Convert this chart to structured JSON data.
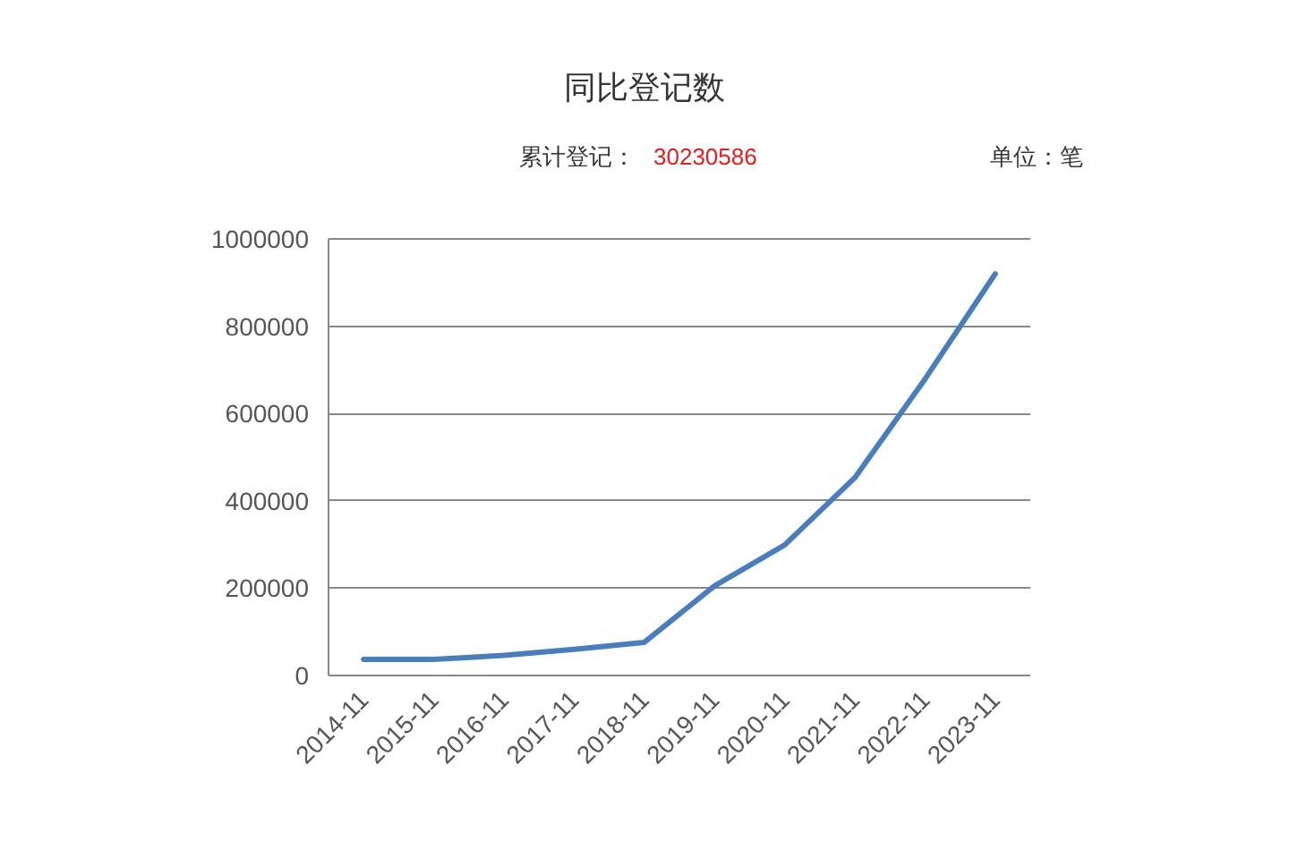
{
  "chart_data": {
    "type": "line",
    "title": "同比登记数",
    "subtitle": "累计登记：",
    "annotations": [
      "30230586",
      "单位：笔"
    ],
    "categories": [
      "2014-11",
      "2015-11",
      "2016-11",
      "2017-11",
      "2018-11",
      "2019-11",
      "2020-11",
      "2021-11",
      "2022-11",
      "2023-11"
    ],
    "series": [
      {
        "color": "#4a7ebb",
        "values": [
          37000,
          37000,
          46000,
          60000,
          76000,
          205000,
          299000,
          453000,
          679000,
          920000
        ]
      }
    ],
    "ylim": [
      0,
      1000000
    ],
    "yticks": [
      0,
      200000,
      400000,
      600000,
      800000,
      1000000
    ],
    "grid": "y"
  }
}
